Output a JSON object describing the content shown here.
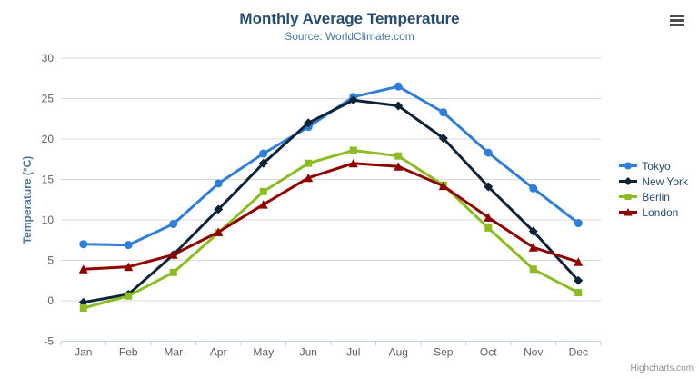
{
  "chart_data": {
    "type": "line",
    "title": "Monthly Average Temperature",
    "subtitle": "Source: WorldClimate.com",
    "xlabel": "",
    "ylabel": "Temperature (°C)",
    "ylim": [
      -5,
      30
    ],
    "ytick_step": 5,
    "grid": true,
    "legend_position": "right",
    "categories": [
      "Jan",
      "Feb",
      "Mar",
      "Apr",
      "May",
      "Jun",
      "Jul",
      "Aug",
      "Sep",
      "Oct",
      "Nov",
      "Dec"
    ],
    "series": [
      {
        "name": "Tokyo",
        "marker": "circle",
        "color": "#2f7ed8",
        "values": [
          7.0,
          6.9,
          9.5,
          14.5,
          18.2,
          21.5,
          25.2,
          26.5,
          23.3,
          18.3,
          13.9,
          9.6
        ]
      },
      {
        "name": "New York",
        "marker": "diamond",
        "color": "#0d233a",
        "values": [
          -0.2,
          0.8,
          5.7,
          11.3,
          17.0,
          22.0,
          24.8,
          24.1,
          20.1,
          14.1,
          8.6,
          2.5
        ]
      },
      {
        "name": "Berlin",
        "marker": "square",
        "color": "#8bbc21",
        "values": [
          -0.9,
          0.6,
          3.5,
          8.4,
          13.5,
          17.0,
          18.6,
          17.9,
          14.3,
          9.0,
          3.9,
          1.0
        ]
      },
      {
        "name": "London",
        "marker": "triangle",
        "color": "#910000",
        "values": [
          3.9,
          4.2,
          5.7,
          8.5,
          11.9,
          15.2,
          17.0,
          16.6,
          14.2,
          10.3,
          6.6,
          4.8
        ]
      }
    ]
  },
  "credits": {
    "label": "Highcharts.com"
  },
  "theme": {
    "background": "#ffffff",
    "title_color": "#274b6d",
    "subtitle_color": "#4d759e",
    "axis_title_color": "#4d759e",
    "tick_label_color": "#606060",
    "gridline_color": "#d8d8d8",
    "axis_line_color": "#c0d0e0",
    "legend_text_color": "#274b6d",
    "credits_color": "#909090",
    "menu_icon_color": "#4d4d4d"
  }
}
